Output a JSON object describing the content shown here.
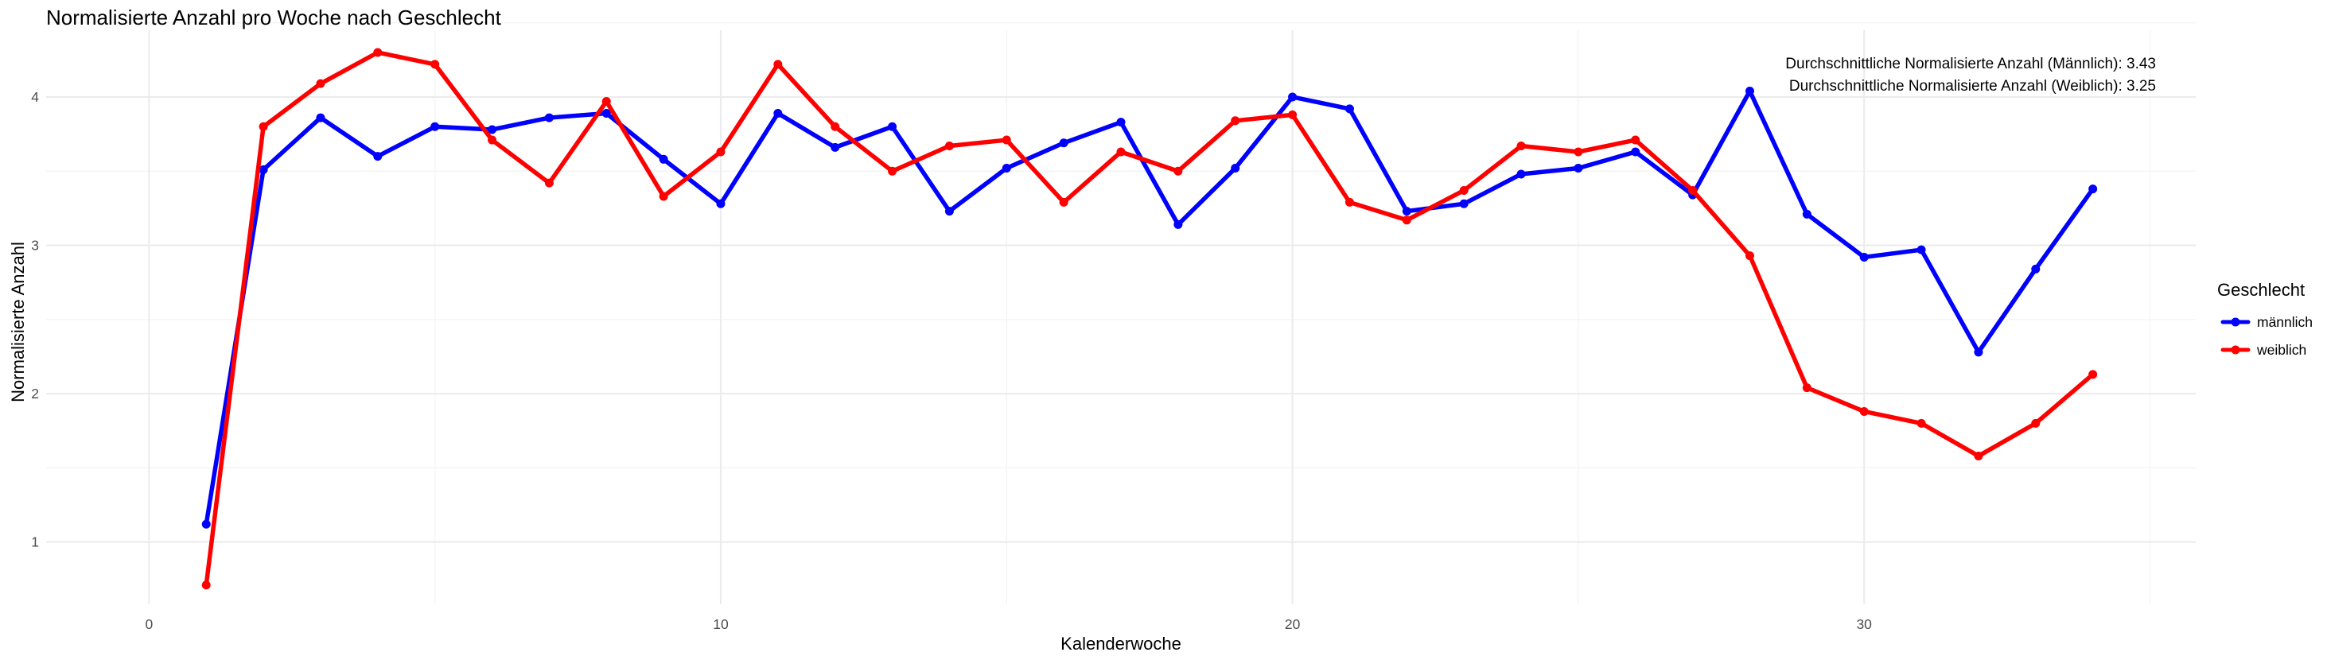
{
  "chart_data": {
    "type": "line",
    "title": "Normalisierte Anzahl pro Woche nach Geschlecht",
    "xlabel": "Kalenderwoche",
    "ylabel": "Normalisierte Anzahl",
    "xlim": [
      -1.8,
      35.8
    ],
    "ylim": [
      0.58,
      4.45
    ],
    "x_ticks": [
      0,
      10,
      20,
      30
    ],
    "y_ticks": [
      1,
      2,
      3,
      4
    ],
    "grid": true,
    "legend_position": "right",
    "legend": {
      "title": "Geschlecht",
      "entries": [
        {
          "name": "männlich",
          "color": "#0000ff"
        },
        {
          "name": "weiblich",
          "color": "#ff0000"
        }
      ]
    },
    "annotations": [
      "Durchschnittliche Normalisierte Anzahl (Männlich): 3.43",
      "Durchschnittliche Normalisierte Anzahl (Weiblich): 3.25"
    ],
    "x": [
      1,
      2,
      3,
      4,
      5,
      6,
      7,
      8,
      9,
      10,
      11,
      12,
      13,
      14,
      15,
      16,
      17,
      18,
      19,
      20,
      21,
      22,
      23,
      24,
      25,
      26,
      27,
      28,
      29,
      30,
      31,
      32,
      33,
      34
    ],
    "series": [
      {
        "name": "männlich",
        "color": "#0000ff",
        "values": [
          1.12,
          3.51,
          3.86,
          3.6,
          3.8,
          3.78,
          3.86,
          3.89,
          3.58,
          3.28,
          3.89,
          3.66,
          3.8,
          3.23,
          3.52,
          3.69,
          3.83,
          3.14,
          3.52,
          4.0,
          3.92,
          3.23,
          3.28,
          3.48,
          3.52,
          3.63,
          3.34,
          4.04,
          3.21,
          2.92,
          2.97,
          2.28,
          2.84,
          3.38
        ]
      },
      {
        "name": "weiblich",
        "color": "#ff0000",
        "values": [
          0.71,
          3.8,
          4.09,
          4.3,
          4.22,
          3.71,
          3.42,
          3.97,
          3.33,
          3.63,
          4.22,
          3.8,
          3.5,
          3.67,
          3.71,
          3.29,
          3.63,
          3.5,
          3.84,
          3.88,
          3.29,
          3.17,
          3.37,
          3.67,
          3.63,
          3.71,
          3.37,
          2.93,
          2.04,
          1.88,
          1.8,
          1.58,
          1.8,
          2.13
        ]
      }
    ]
  }
}
